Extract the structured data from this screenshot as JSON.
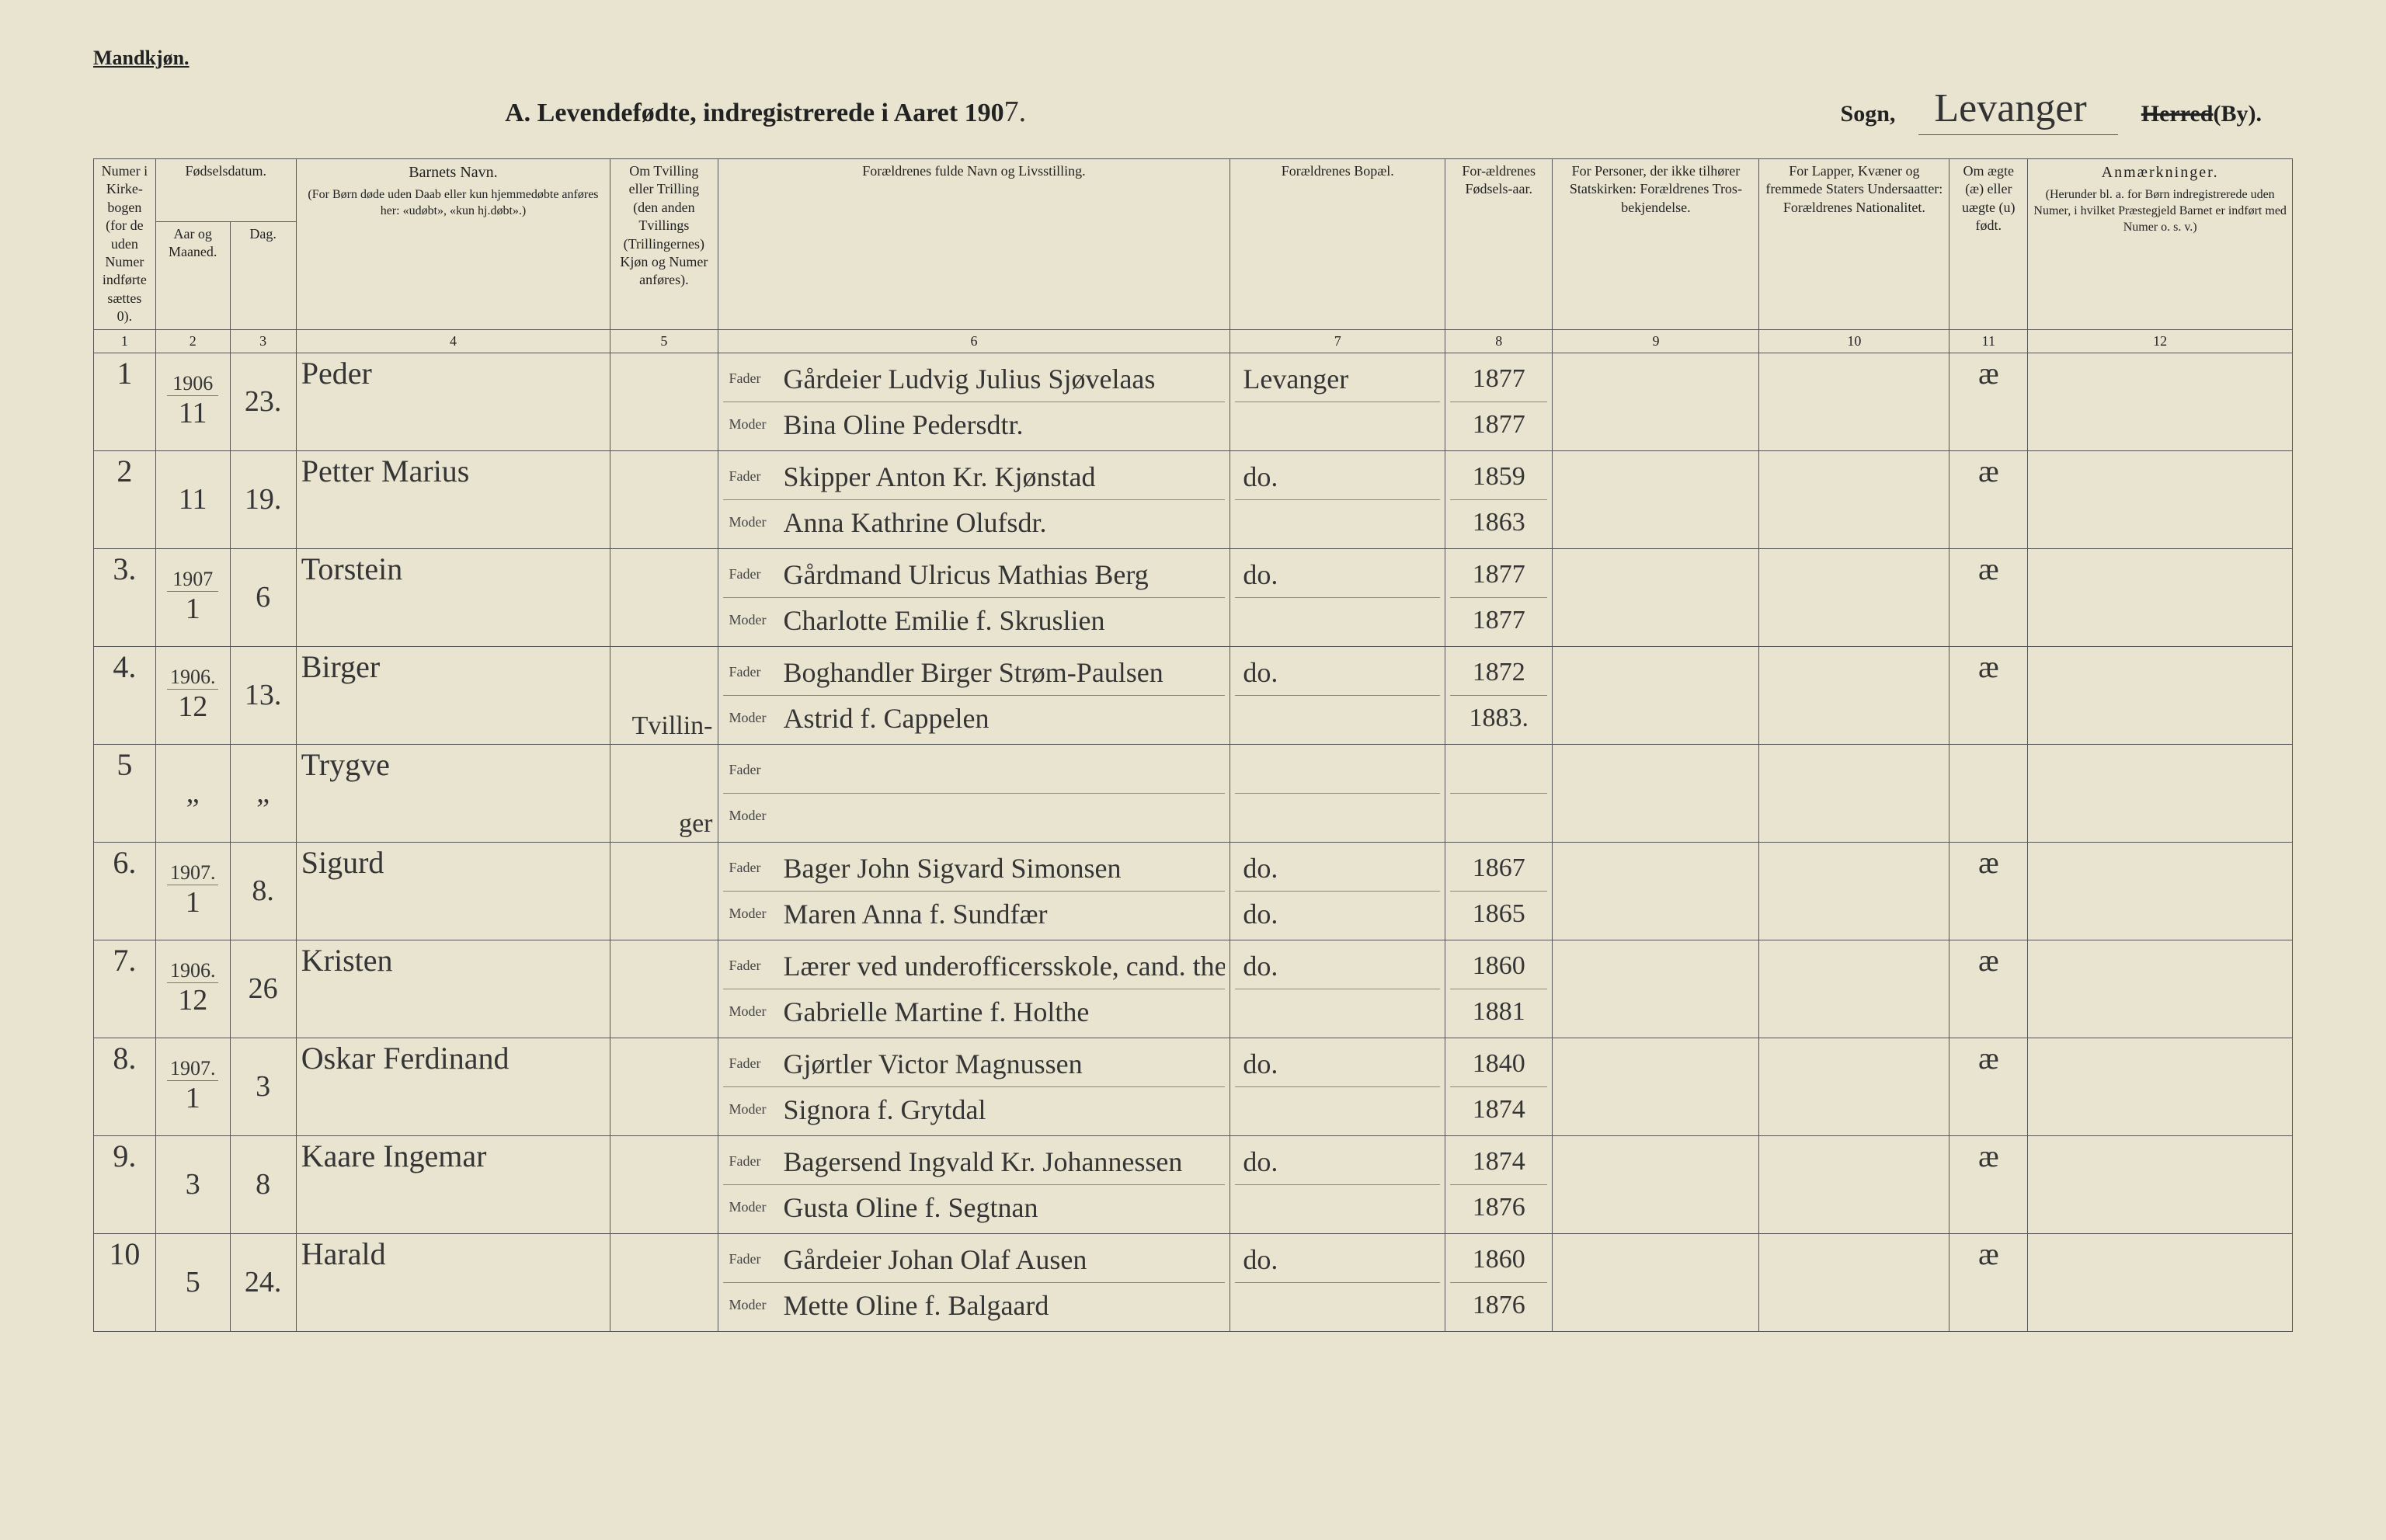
{
  "page": {
    "gender_header": "Mandkjøn.",
    "title_prefix": "A.  Levendefødte, indregistrerede i Aaret 190",
    "title_year_suffix": "7.",
    "sogn_label": "Sogn,",
    "sogn_value": "Levanger",
    "herred_label": "Herred",
    "by_label": "(By)."
  },
  "columns": {
    "c1": "Numer i Kirke-bogen (for de uden Numer indførte sættes 0).",
    "c23_group": "Fødselsdatum.",
    "c2": "Aar og Maaned.",
    "c3": "Dag.",
    "c4_title": "Barnets Navn.",
    "c4_sub": "(For Børn døde uden Daab eller kun hjemmedøbte anføres her: «udøbt», «kun hj.døbt».)",
    "c5": "Om Tvilling eller Trilling (den anden Tvillings (Trillingernes) Kjøn og Numer anføres).",
    "c6": "Forældrenes fulde Navn og Livsstilling.",
    "c7": "Forældrenes Bopæl.",
    "c8": "For-ældrenes Fødsels-aar.",
    "c9": "For Personer, der ikke tilhører Statskirken: Forældrenes Tros-bekjendelse.",
    "c10": "For Lapper, Kvæner og fremmede Staters Undersaatter: Forældrenes Nationalitet.",
    "c11": "Om ægte (æ) eller uægte (u) født.",
    "c12_title": "Anmærkninger.",
    "c12_sub": "(Herunder bl. a. for Børn indregistrerede uden Numer, i hvilket Præstegjeld Barnet er indført med Numer o. s. v.)"
  },
  "colnums": [
    "1",
    "2",
    "3",
    "4",
    "5",
    "6",
    "7",
    "8",
    "9",
    "10",
    "11",
    "12"
  ],
  "parent_labels": {
    "father": "Fader",
    "mother": "Moder"
  },
  "rows": [
    {
      "num": "1",
      "year_top": "1906",
      "month": "11",
      "day": "23.",
      "name": "Peder",
      "twin": "",
      "father": "Gårdeier Ludvig Julius Sjøvelaas",
      "mother": "Bina Oline Pedersdtr.",
      "bopael_f": "Levanger",
      "bopael_m": "",
      "fyear_f": "1877",
      "fyear_m": "1877",
      "legit": "æ"
    },
    {
      "num": "2",
      "year_top": "",
      "month": "11",
      "day": "19.",
      "name": "Petter Marius",
      "twin": "",
      "father": "Skipper Anton Kr. Kjønstad",
      "mother": "Anna Kathrine Olufsdr.",
      "bopael_f": "do.",
      "bopael_m": "",
      "fyear_f": "1859",
      "fyear_m": "1863",
      "legit": "æ"
    },
    {
      "num": "3.",
      "year_top": "1907",
      "month": "1",
      "day": "6",
      "name": "Torstein",
      "twin": "",
      "father": "Gårdmand Ulricus Mathias Berg",
      "mother": "Charlotte Emilie f. Skruslien",
      "bopael_f": "do.",
      "bopael_m": "",
      "fyear_f": "1877",
      "fyear_m": "1877",
      "legit": "æ"
    },
    {
      "num": "4.",
      "year_top": "1906.",
      "month": "12",
      "day": "13.",
      "name": "Birger",
      "twin": "Tvillin-",
      "father": "Boghandler Birger Strøm-Paulsen",
      "mother": "Astrid f. Cappelen",
      "bopael_f": "do.",
      "bopael_m": "",
      "fyear_f": "1872",
      "fyear_m": "1883.",
      "legit": "æ"
    },
    {
      "num": "5",
      "year_top": "",
      "month": "„",
      "day": "„",
      "name": "Trygve",
      "twin": "ger",
      "father": "",
      "mother": "",
      "bopael_f": "",
      "bopael_m": "",
      "fyear_f": "",
      "fyear_m": "",
      "legit": ""
    },
    {
      "num": "6.",
      "year_top": "1907.",
      "month": "1",
      "day": "8.",
      "name": "Sigurd",
      "twin": "",
      "father": "Bager John Sigvard Simonsen",
      "mother": "Maren Anna f. Sundfær",
      "bopael_f": "do.",
      "bopael_m": "do.",
      "fyear_f": "1867",
      "fyear_m": "1865",
      "legit": "æ"
    },
    {
      "num": "7.",
      "year_top": "1906.",
      "month": "12",
      "day": "26",
      "name": "Kristen",
      "twin": "",
      "father": "Lærer ved underofficersskole, cand. theol. Kristen Mortensen Mo",
      "mother": "Gabrielle Martine f. Holthe",
      "bopael_f": "do.",
      "bopael_m": "",
      "fyear_f": "1860",
      "fyear_m": "1881",
      "legit": "æ"
    },
    {
      "num": "8.",
      "year_top": "1907.",
      "month": "1",
      "day": "3",
      "name": "Oskar Ferdinand",
      "twin": "",
      "father": "Gjørtler Victor Magnussen",
      "mother": "Signora f. Grytdal",
      "bopael_f": "do.",
      "bopael_m": "",
      "fyear_f": "1840",
      "fyear_m": "1874",
      "legit": "æ"
    },
    {
      "num": "9.",
      "year_top": "",
      "month": "3",
      "day": "8",
      "name": "Kaare Ingemar",
      "twin": "",
      "father": "Bagersend Ingvald Kr. Johannessen",
      "mother": "Gusta Oline f. Segtnan",
      "bopael_f": "do.",
      "bopael_m": "",
      "fyear_f": "1874",
      "fyear_m": "1876",
      "legit": "æ"
    },
    {
      "num": "10",
      "year_top": "",
      "month": "5",
      "day": "24.",
      "name": "Harald",
      "twin": "",
      "father": "Gårdeier Johan Olaf Ausen",
      "mother": "Mette Oline f. Balgaard",
      "bopael_f": "do.",
      "bopael_m": "",
      "fyear_f": "1860",
      "fyear_m": "1876",
      "legit": "æ"
    }
  ]
}
